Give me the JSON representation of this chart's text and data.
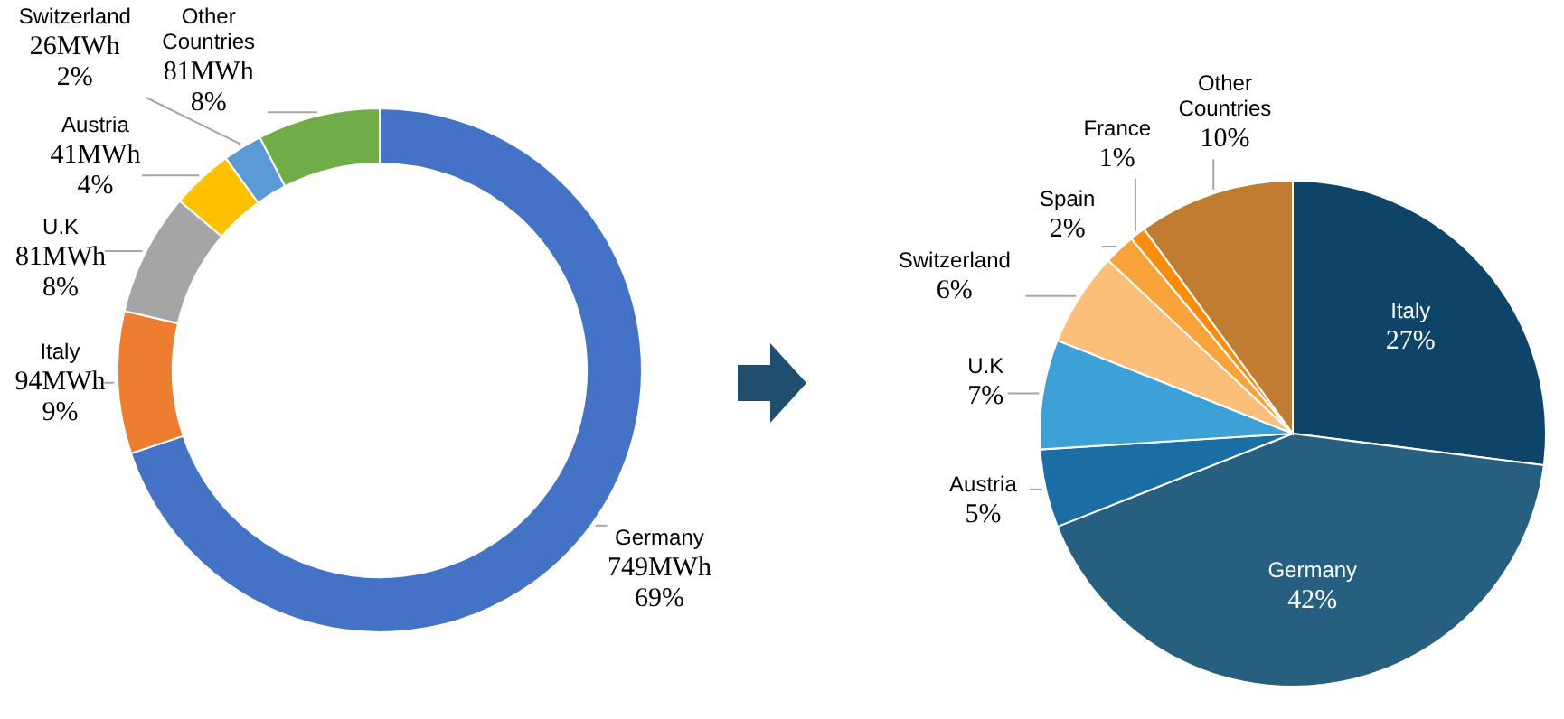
{
  "chart_data": [
    {
      "type": "donut",
      "categories": [
        "Germany",
        "Italy",
        "U.K",
        "Austria",
        "Switzerland",
        "Other Countries"
      ],
      "values": [
        749,
        94,
        81,
        41,
        26,
        81
      ],
      "colors": [
        "#4472c4",
        "#ed7d31",
        "#a5a5a5",
        "#ffc000",
        "#5b9bd5",
        "#70ad47"
      ],
      "value_labels": [
        "749MWh 69%",
        "94MWh 9%",
        "81MWh 8%",
        "41MWh 4%",
        "26MWh 2%",
        "81MWh 8%"
      ]
    },
    {
      "type": "pie",
      "categories": [
        "Italy",
        "Germany",
        "Austria",
        "U.K",
        "Switzerland",
        "Spain",
        "France",
        "Other Countries"
      ],
      "values": [
        27,
        42,
        5,
        7,
        6,
        2,
        1,
        10
      ],
      "colors": [
        "#0d4468",
        "#265f80",
        "#1a6ea3",
        "#3da0d6",
        "#fbbf7a",
        "#f9a43a",
        "#fb8c0e",
        "#c07c30"
      ],
      "value_labels": [
        "27%",
        "42%",
        "5%",
        "7%",
        "6%",
        "2%",
        "1%",
        "10%"
      ]
    }
  ]
}
